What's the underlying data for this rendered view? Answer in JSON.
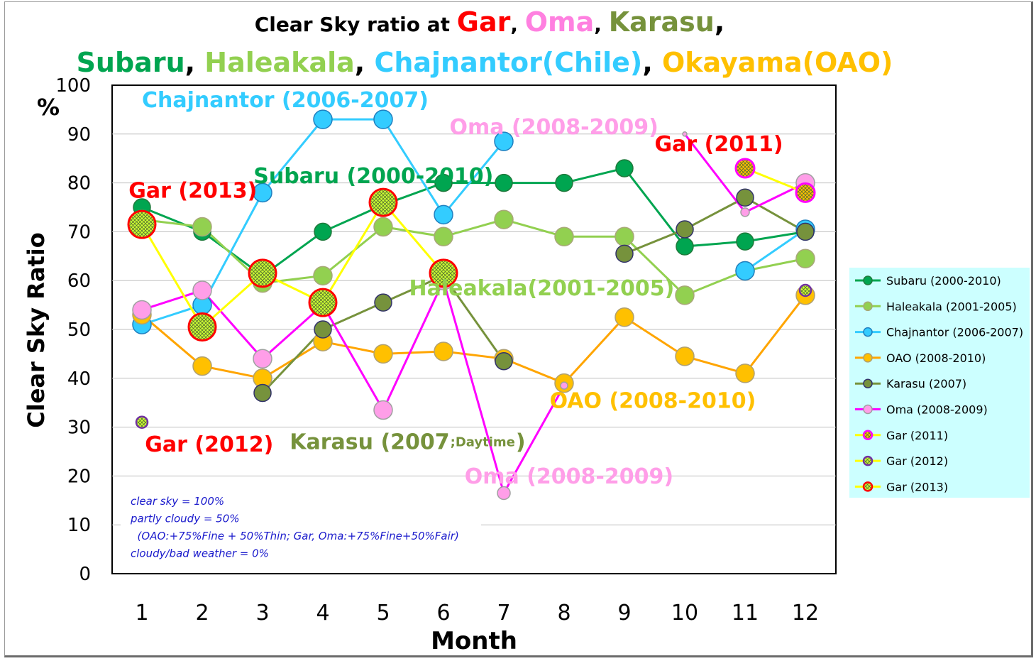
{
  "chart_data": {
    "type": "line",
    "title_line1": [
      {
        "text": "Clear Sky ratio at ",
        "color": "#000000",
        "big": false
      },
      {
        "text": "Gar",
        "color": "#ff0000",
        "big": true
      },
      {
        "text": ", ",
        "color": "#000000",
        "big": false
      },
      {
        "text": "Oma",
        "color": "#ff80e0",
        "big": true
      },
      {
        "text": ", ",
        "color": "#000000",
        "big": false
      },
      {
        "text": "Karasu",
        "color": "#76923c",
        "big": true
      },
      {
        "text": ",",
        "color": "#000000",
        "big": true
      }
    ],
    "title_line2": [
      {
        "text": "Subaru",
        "color": "#00a550"
      },
      {
        "text": ", ",
        "color": "#000000"
      },
      {
        "text": "Haleakala",
        "color": "#92d050"
      },
      {
        "text": ", ",
        "color": "#000000"
      },
      {
        "text": "Chajnantor(Chile)",
        "color": "#33ccff"
      },
      {
        "text": ", ",
        "color": "#000000"
      },
      {
        "text": "Okayama(OAO)",
        "color": "#ffc000"
      }
    ],
    "xlabel": "Month",
    "ylabel": "Clear Sky Ratio",
    "yunit": "%",
    "ylim": [
      0,
      100
    ],
    "yticks": [
      0,
      10,
      20,
      30,
      40,
      50,
      60,
      70,
      80,
      90,
      100
    ],
    "categories": [
      "1",
      "2",
      "3",
      "4",
      "5",
      "6",
      "7",
      "8",
      "9",
      "10",
      "11",
      "12"
    ],
    "grid": "horizontal",
    "legend_position": "right",
    "series": [
      {
        "name": "Subaru (2000-2010)",
        "color": "#00a550",
        "marker": "circle",
        "fill": "#00a550",
        "edge": "#1f7a3c",
        "values": [
          75,
          70,
          61,
          70,
          75.5,
          80,
          80,
          80,
          83,
          67,
          68,
          70
        ],
        "size": 12
      },
      {
        "name": "Haleakala (2001-2005)",
        "color": "#92d050",
        "marker": "circle",
        "fill": "#92d050",
        "edge": "#a8a878",
        "values": [
          72.5,
          71,
          59.5,
          61,
          71,
          69,
          72.5,
          69,
          69,
          57,
          62,
          64.5
        ],
        "size": 13
      },
      {
        "name": "Chajnantor (2006-2007)",
        "color": "#33ccff",
        "marker": "circle",
        "fill": "#33ccff",
        "edge": "#2080c0",
        "values": [
          51,
          55,
          78,
          93,
          93,
          73.5,
          88.5,
          null,
          null,
          null,
          62,
          70.5
        ],
        "size": 13
      },
      {
        "name": "OAO (2008-2010)",
        "color": "#ffa500",
        "marker": "circle",
        "fill": "#ffc000",
        "edge": "#b0a070",
        "values": [
          53,
          42.5,
          40,
          47.5,
          45,
          45.5,
          44,
          39,
          52.5,
          44.5,
          41,
          57
        ],
        "size": 13
      },
      {
        "name": "Karasu (2007)",
        "color": "#76923c",
        "marker": "circle",
        "fill": "#76923c",
        "edge": "#33336a",
        "values": [
          null,
          null,
          37,
          50,
          55.5,
          61,
          43.5,
          null,
          65.5,
          70.5,
          77,
          70
        ],
        "size": 12
      },
      {
        "name": "Oma (2008-2009)",
        "color": "#ff00ff",
        "marker": "circle",
        "fill": "#ff9ee8",
        "edge": "#a0a0a0",
        "values": [
          54,
          58,
          44,
          55,
          33.5,
          60,
          16.5,
          38.5,
          null,
          90,
          74,
          80
        ],
        "size": 13
      },
      {
        "name": "Gar (2011)",
        "color": "#ffff00",
        "marker": "hatched",
        "fill": "#ffc000",
        "edge": "#ff00ff",
        "values": [
          null,
          null,
          null,
          null,
          null,
          null,
          null,
          null,
          null,
          null,
          83,
          78
        ],
        "size": 13
      },
      {
        "name": "Gar (2012)",
        "color": "#ffff00",
        "marker": "hatched",
        "fill": "#ccff33",
        "edge": "#7030a0",
        "values": [
          31,
          null,
          null,
          null,
          null,
          null,
          null,
          null,
          null,
          null,
          null,
          58
        ],
        "size": 8
      },
      {
        "name": "Gar (2013)",
        "color": "#ffff00",
        "marker": "hatched",
        "fill": "#ccff33",
        "edge": "#ff0000",
        "values": [
          71.5,
          50.5,
          61.5,
          55.5,
          76,
          61.5,
          null,
          null,
          null,
          null,
          null,
          null
        ],
        "size": 19
      }
    ],
    "annotations": [
      {
        "text": "Chajnantor (2006-2007)",
        "color": "#33ccff",
        "x": 1.0,
        "y": 97,
        "size": 30,
        "weight": "bold"
      },
      {
        "text": "Oma (2008-2009)",
        "color": "#ff9ee8",
        "x": 6.1,
        "y": 91.5,
        "size": 30,
        "weight": "bold"
      },
      {
        "text": "Gar (2011)",
        "color": "#ff0000",
        "x": 9.5,
        "y": 88,
        "size": 30,
        "weight": "bold"
      },
      {
        "text": "Subaru (2000-2010)",
        "color": "#00a550",
        "x": 2.85,
        "y": 81.5,
        "size": 30,
        "weight": "bold"
      },
      {
        "text": "Gar (2013)",
        "color": "#ff0000",
        "x": 0.78,
        "y": 78.5,
        "size": 30,
        "weight": "bold"
      },
      {
        "text": "Haleakala(2001-2005)",
        "color": "#92d050",
        "x": 5.43,
        "y": 58.5,
        "size": 30,
        "weight": "bold"
      },
      {
        "text": "OAO (2008-2010)",
        "color": "#ffc000",
        "x": 7.76,
        "y": 35.5,
        "size": 30,
        "weight": "bold"
      },
      {
        "text": "Gar (2012)",
        "color": "#ff0000",
        "x": 1.05,
        "y": 26.5,
        "size": 30,
        "weight": "bold"
      },
      {
        "text": "Karasu (2007",
        "color": "#76923c",
        "x": 3.45,
        "y": 27,
        "size": 30,
        "weight": "bold"
      },
      {
        "text": ";Daytime",
        "color": "#76923c",
        "x": 5.08,
        "y": 27,
        "size": 18,
        "weight": "bold"
      },
      {
        "text": ")",
        "color": "#76923c",
        "x": 5.78,
        "y": 27,
        "size": 30,
        "weight": "bold"
      },
      {
        "text": "Oma (2008-2009)",
        "color": "#ff9ee8",
        "x": 6.35,
        "y": 20,
        "size": 30,
        "weight": "bold"
      }
    ],
    "notes": [
      "clear sky = 100%",
      "partly cloudy = 50%",
      "  (OAO:+75%Fine + 50%Thin; Gar, Oma:+75%Fine+50%Fair)",
      "cloudy/bad weather = 0%"
    ]
  },
  "colors": {
    "legend_background": "#ccffff",
    "grid": "#bfbfbf",
    "axis": "#000000"
  }
}
